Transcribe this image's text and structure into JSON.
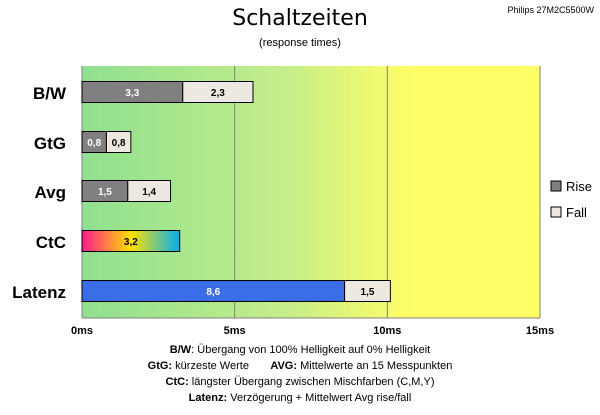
{
  "corner_label": "Philips 27M2C5500W",
  "chart_data": {
    "type": "bar",
    "orientation": "horizontal",
    "stacked": true,
    "title": "Schaltzeiten",
    "subtitle": "(response times)",
    "categories": [
      "B/W",
      "GtG",
      "Avg",
      "CtC",
      "Latenz"
    ],
    "series": [
      {
        "name": "Rise",
        "values": [
          3.3,
          0.8,
          1.5,
          null,
          null
        ],
        "color": "#808080"
      },
      {
        "name": "Fall",
        "values": [
          2.3,
          0.8,
          1.4,
          null,
          null
        ],
        "color": "#ede9e0"
      }
    ],
    "ctc": {
      "value": 3.2,
      "label": "3,2",
      "gradient": [
        "#ff1a8c",
        "#ffe000",
        "#00b0f0"
      ]
    },
    "latenz": {
      "values": [
        8.6,
        1.5
      ],
      "labels": [
        "8,6",
        "1,5"
      ],
      "colors": [
        "#3a6de8",
        "#ede9e0"
      ]
    },
    "value_labels": {
      "Rise": [
        "3,3",
        "0,8",
        "1,5"
      ],
      "Fall": [
        "2,3",
        "0,8",
        "1,4"
      ]
    },
    "xlim": [
      0,
      15
    ],
    "xticks": [
      0,
      5,
      10,
      15
    ],
    "xtick_labels": [
      "0ms",
      "5ms",
      "10ms",
      "15ms"
    ],
    "grid": true,
    "legend_position": "right",
    "background_gradient": [
      "#8fe08f",
      "#ffff66"
    ]
  },
  "notes": [
    {
      "bold": "B/W",
      "text": ":  Übergang von 100% Helligkeit auf 0% Helligkeit"
    },
    {
      "bold": "GtG:",
      "text": " kürzeste  Werte",
      "bold2": "AVG:",
      "text2": " Mittelwerte  an 15  Messpunkten"
    },
    {
      "bold": "CtC:",
      "text": " längster Übergang  zwischen Mischfarben  (C,M,Y)"
    },
    {
      "bold": "Latenz:",
      "text": " Verzögerung  + Mittelwert  Avg rise/fall"
    }
  ]
}
